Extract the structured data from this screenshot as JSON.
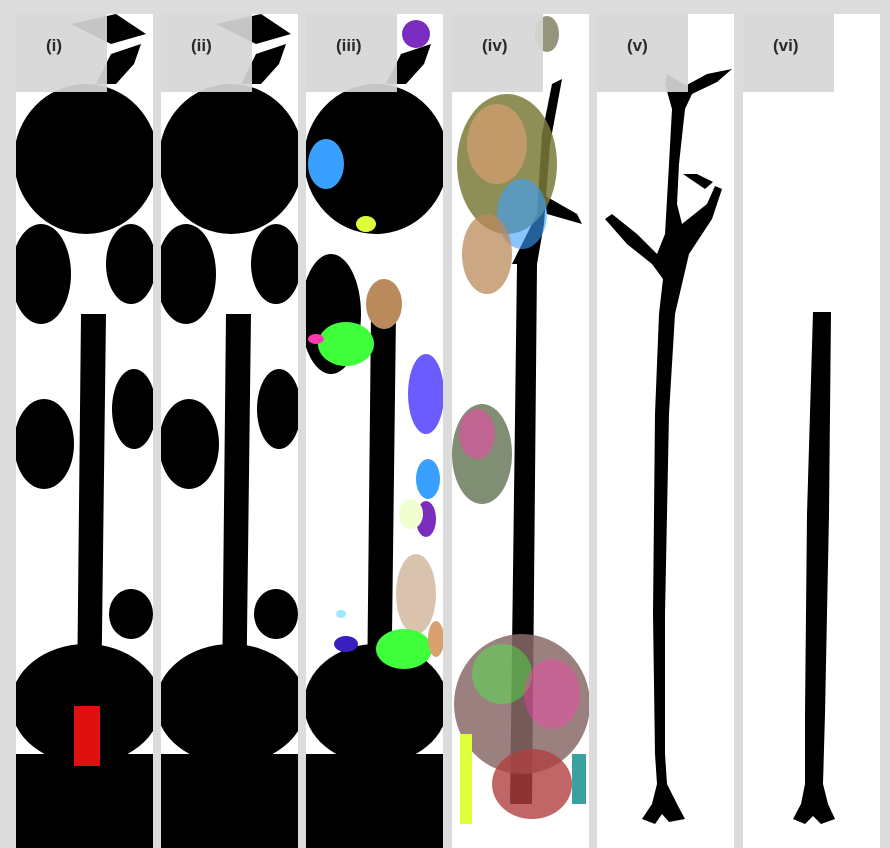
{
  "panels": [
    {
      "id": "i",
      "label": "(i)"
    },
    {
      "id": "ii",
      "label": "(ii)"
    },
    {
      "id": "iii",
      "label": "(iii)"
    },
    {
      "id": "iv",
      "label": "(iv)"
    },
    {
      "id": "v",
      "label": "(v)"
    },
    {
      "id": "vi",
      "label": "(vi)"
    }
  ],
  "colors": {
    "point_cloud": "#000000",
    "stem_highlight": "#e01010",
    "segment_palette": [
      "#6a5cff",
      "#3fff3a",
      "#b98a5a",
      "#d9c2ae",
      "#3aa0ff",
      "#ff3ab0",
      "#7a2dbf",
      "#9be8ff",
      "#f0ffd0"
    ]
  }
}
